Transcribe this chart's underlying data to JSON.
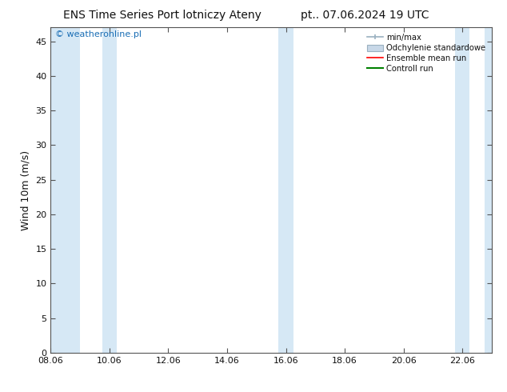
{
  "title_left": "ENS Time Series Port lotniczy Ateny",
  "title_right": "pt.. 07.06.2024 19 UTC",
  "ylabel": "Wind 10m (m/s)",
  "watermark": "© weatheronline.pl",
  "xtick_labels": [
    "08.06",
    "10.06",
    "12.06",
    "14.06",
    "16.06",
    "18.06",
    "20.06",
    "22.06"
  ],
  "xtick_positions": [
    0,
    2,
    4,
    6,
    8,
    10,
    12,
    14
  ],
  "xlim": [
    0,
    15.0
  ],
  "ylim": [
    0,
    47
  ],
  "ytick_positions": [
    0,
    5,
    10,
    15,
    20,
    25,
    30,
    35,
    40,
    45
  ],
  "ytick_labels": [
    "0",
    "5",
    "10",
    "15",
    "20",
    "25",
    "30",
    "35",
    "40",
    "45"
  ],
  "band_positions": [
    [
      0.0,
      1.0
    ],
    [
      1.75,
      2.25
    ],
    [
      7.75,
      8.25
    ],
    [
      13.75,
      14.25
    ],
    [
      14.75,
      15.0
    ]
  ],
  "shaded_color": "#d6e8f5",
  "legend_labels": [
    "min/max",
    "Odchylenie standardowe",
    "Ensemble mean run",
    "Controll run"
  ],
  "legend_colors": [
    "#b8cfe0",
    "#c8d8e8",
    "red",
    "green"
  ],
  "background_color": "#ffffff",
  "title_fontsize": 10,
  "label_fontsize": 9,
  "tick_fontsize": 8,
  "watermark_color": "#1a6eb5",
  "watermark_fontsize": 8,
  "spine_color": "#555555",
  "text_color": "#111111"
}
